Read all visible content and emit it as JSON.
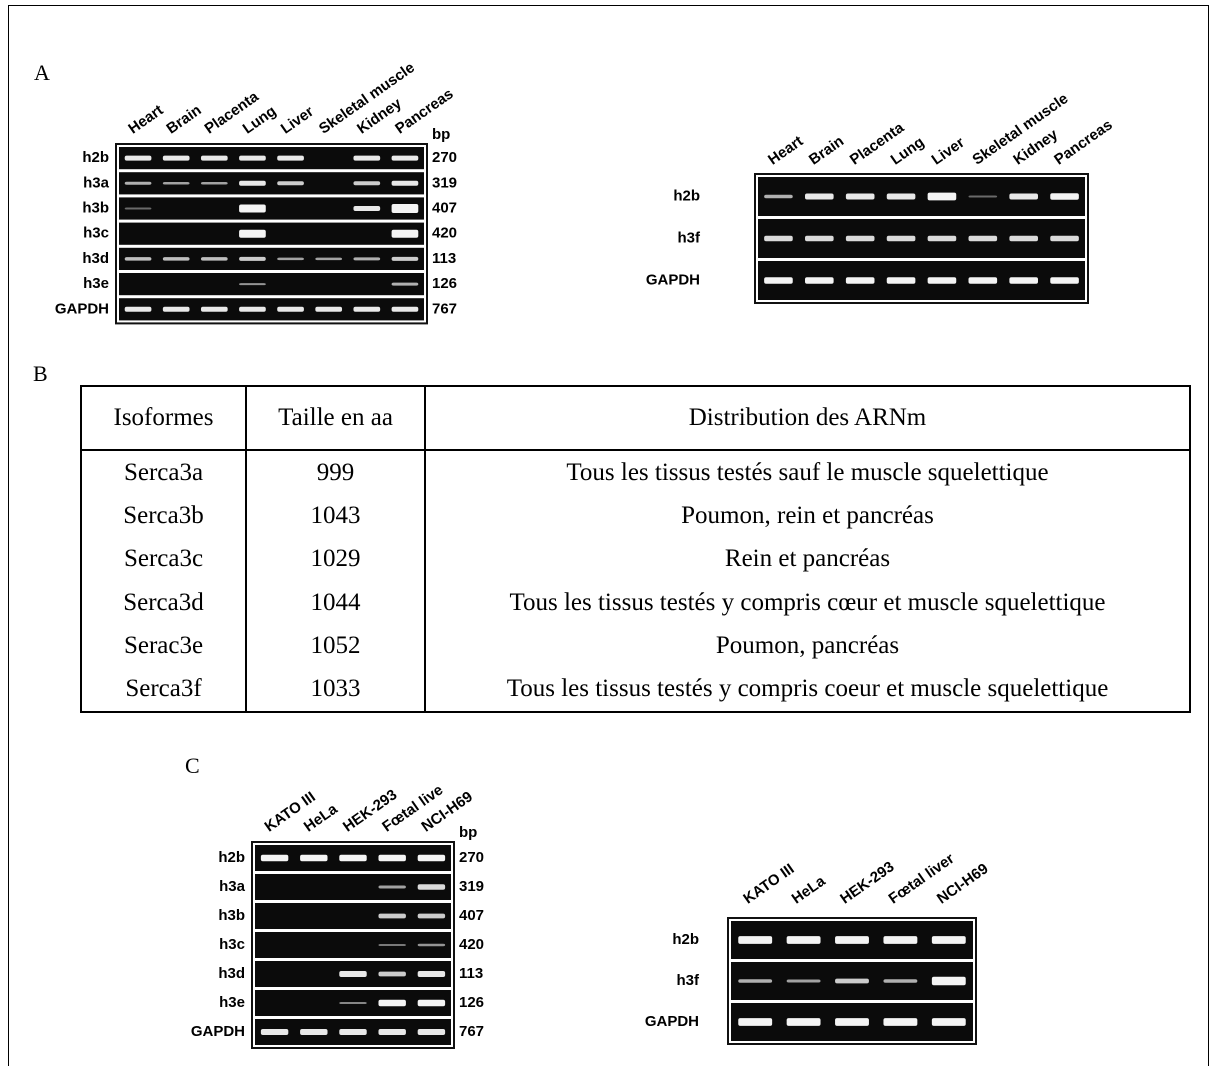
{
  "panel_a": {
    "label": "A",
    "gel_left": {
      "lanes": [
        "Heart",
        "Brain",
        "Placenta",
        "Lung",
        "Liver",
        "Skeletal muscle",
        "Kidney",
        "Pancreas"
      ],
      "rows": [
        "h2b",
        "h3a",
        "h3b",
        "h3c",
        "h3d",
        "h3e",
        "GAPDH"
      ],
      "bp_header": "bp",
      "bp": [
        270,
        319,
        407,
        420,
        113,
        126,
        767
      ]
    },
    "gel_right": {
      "lanes": [
        "Heart",
        "Brain",
        "Placenta",
        "Lung",
        "Liver",
        "Skeletal muscle",
        "Kidney",
        "Pancreas"
      ],
      "rows": [
        "h2b",
        "h3f",
        "GAPDH"
      ]
    }
  },
  "panel_b": {
    "label": "B",
    "table": {
      "header": [
        "Isoformes",
        "Taille en aa",
        "Distribution des ARNm"
      ],
      "rows": [
        [
          "Serca3a",
          999,
          "Tous les tissus testés sauf le muscle squelettique"
        ],
        [
          "Serca3b",
          1043,
          "Poumon, rein et pancréas"
        ],
        [
          "Serca3c",
          1029,
          "Rein et pancréas"
        ],
        [
          "Serca3d",
          1044,
          "Tous les tissus testés y compris cœur et muscle squelettique"
        ],
        [
          "Serac3e",
          1052,
          "Poumon, pancréas"
        ],
        [
          "Serca3f",
          1033,
          "Tous les tissus testés y compris coeur et muscle squelettique"
        ]
      ]
    }
  },
  "panel_c": {
    "label": "C",
    "gel_left": {
      "lanes": [
        "KATO III",
        "HeLa",
        "HEK-293",
        "Fœtal live",
        "NCI-H69"
      ],
      "rows": [
        "h2b",
        "h3a",
        "h3b",
        "h3c",
        "h3d",
        "h3e",
        "GAPDH"
      ],
      "bp_header": "bp",
      "bp": [
        270,
        319,
        407,
        420,
        113,
        126,
        767
      ]
    },
    "gel_right": {
      "lanes": [
        "KATO III",
        "HeLa",
        "HEK-293",
        "Fœtal liver",
        "NCI-H69"
      ],
      "rows": [
        "h2b",
        "h3f",
        "GAPDH"
      ]
    }
  }
}
